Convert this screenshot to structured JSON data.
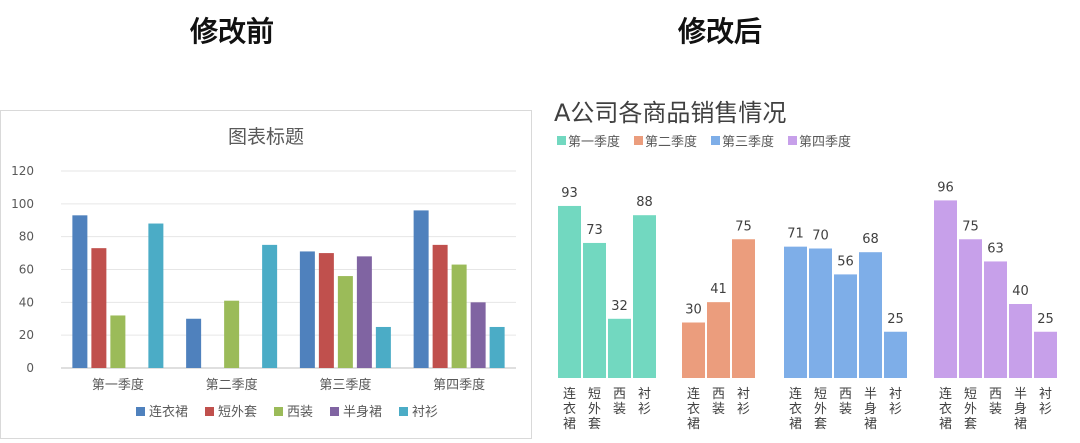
{
  "headings": {
    "before": "修改前",
    "after": "修改后"
  },
  "chart_data": [
    {
      "type": "bar",
      "title": "图表标题",
      "categories": [
        "第一季度",
        "第二季度",
        "第三季度",
        "第四季度"
      ],
      "series": [
        {
          "name": "连衣裙",
          "values": [
            93,
            30,
            71,
            96
          ],
          "color": "#4f81bd"
        },
        {
          "name": "短外套",
          "values": [
            73,
            null,
            70,
            75
          ],
          "color": "#c0504d"
        },
        {
          "name": "西装",
          "values": [
            32,
            41,
            56,
            63
          ],
          "color": "#9bbb59"
        },
        {
          "name": "半身裙",
          "values": [
            null,
            null,
            68,
            40
          ],
          "color": "#8064a2"
        },
        {
          "name": "衬衫",
          "values": [
            88,
            75,
            25,
            25
          ],
          "color": "#4bacc6"
        }
      ],
      "ylim": [
        0,
        120
      ],
      "yticks": [
        0,
        20,
        40,
        60,
        80,
        100,
        120
      ],
      "grid": true,
      "legend": "bottom"
    },
    {
      "type": "bar",
      "title": "A公司各商品销售情况",
      "groups": [
        {
          "name": "第一季度",
          "color": "#72d8c0",
          "items": [
            {
              "label": "连衣裙",
              "value": 93
            },
            {
              "label": "短外套",
              "value": 73
            },
            {
              "label": "西装",
              "value": 32
            },
            {
              "label": "衬衫",
              "value": 88
            }
          ]
        },
        {
          "name": "第二季度",
          "color": "#eb9d7d",
          "items": [
            {
              "label": "连衣裙",
              "value": 30
            },
            {
              "label": "西装",
              "value": 41
            },
            {
              "label": "衬衫",
              "value": 75
            }
          ]
        },
        {
          "name": "第三季度",
          "color": "#7eaee8",
          "items": [
            {
              "label": "连衣裙",
              "value": 71
            },
            {
              "label": "短外套",
              "value": 70
            },
            {
              "label": "西装",
              "value": 56
            },
            {
              "label": "半身裙",
              "value": 68
            },
            {
              "label": "衬衫",
              "value": 25
            }
          ]
        },
        {
          "name": "第四季度",
          "color": "#c7a0ea",
          "items": [
            {
              "label": "连衣裙",
              "value": 96
            },
            {
              "label": "短外套",
              "value": 75
            },
            {
              "label": "西装",
              "value": 63
            },
            {
              "label": "半身裙",
              "value": 40
            },
            {
              "label": "衬衫",
              "value": 25
            }
          ]
        }
      ],
      "grid": false,
      "legend": "top-left",
      "data_labels": true
    }
  ]
}
